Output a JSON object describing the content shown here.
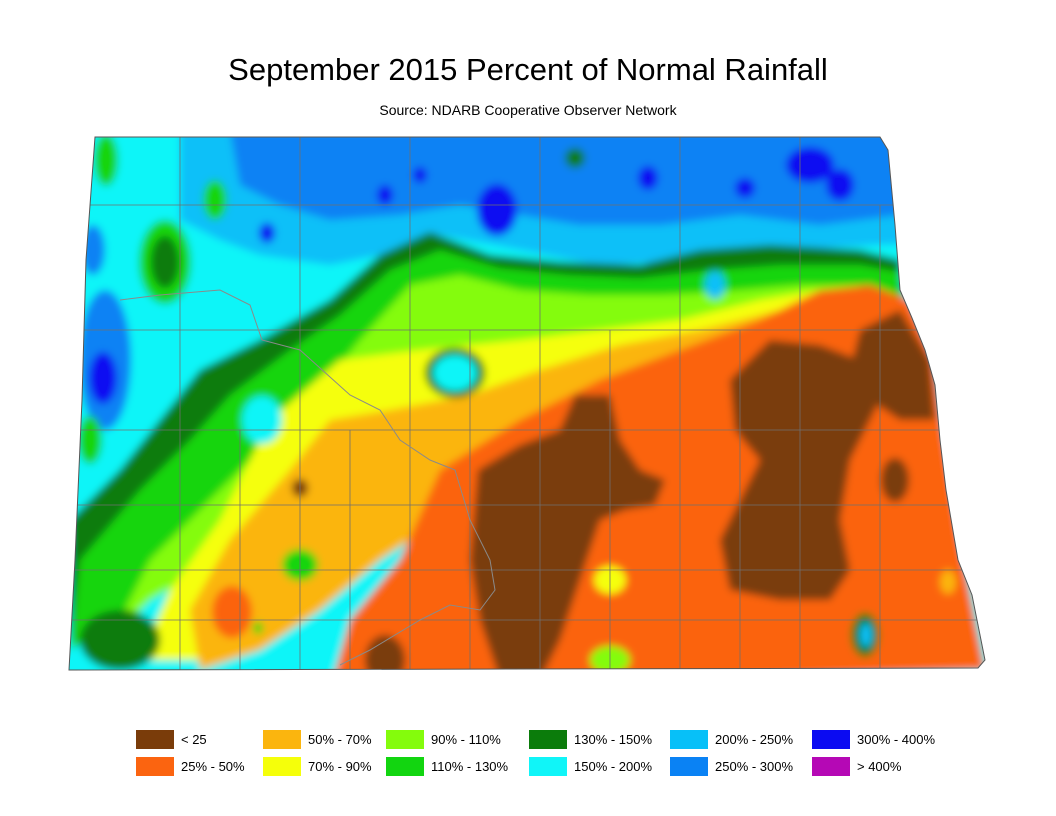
{
  "title": "September 2015 Percent of Normal Rainfall",
  "subtitle": "Source: NDARB Cooperative Observer Network",
  "legend": [
    {
      "label": "< 25",
      "color": "#7a3c0a"
    },
    {
      "label": "25% - 50%",
      "color": "#fb6410"
    },
    {
      "label": "50% - 70%",
      "color": "#fbb50e"
    },
    {
      "label": "70% - 90%",
      "color": "#f5ff0a"
    },
    {
      "label": "90% - 110%",
      "color": "#84fc0c"
    },
    {
      "label": "110% - 130%",
      "color": "#12d510"
    },
    {
      "label": "130% - 150%",
      "color": "#0b7c0b"
    },
    {
      "label": "150% - 200%",
      "color": "#10f5f8"
    },
    {
      "label": "200% - 250%",
      "color": "#07c0f8"
    },
    {
      "label": "250% - 300%",
      "color": "#0a82f4"
    },
    {
      "label": "300% - 400%",
      "color": "#0b0bf2"
    },
    {
      "label": "> 400%",
      "color": "#b508b5"
    }
  ]
}
